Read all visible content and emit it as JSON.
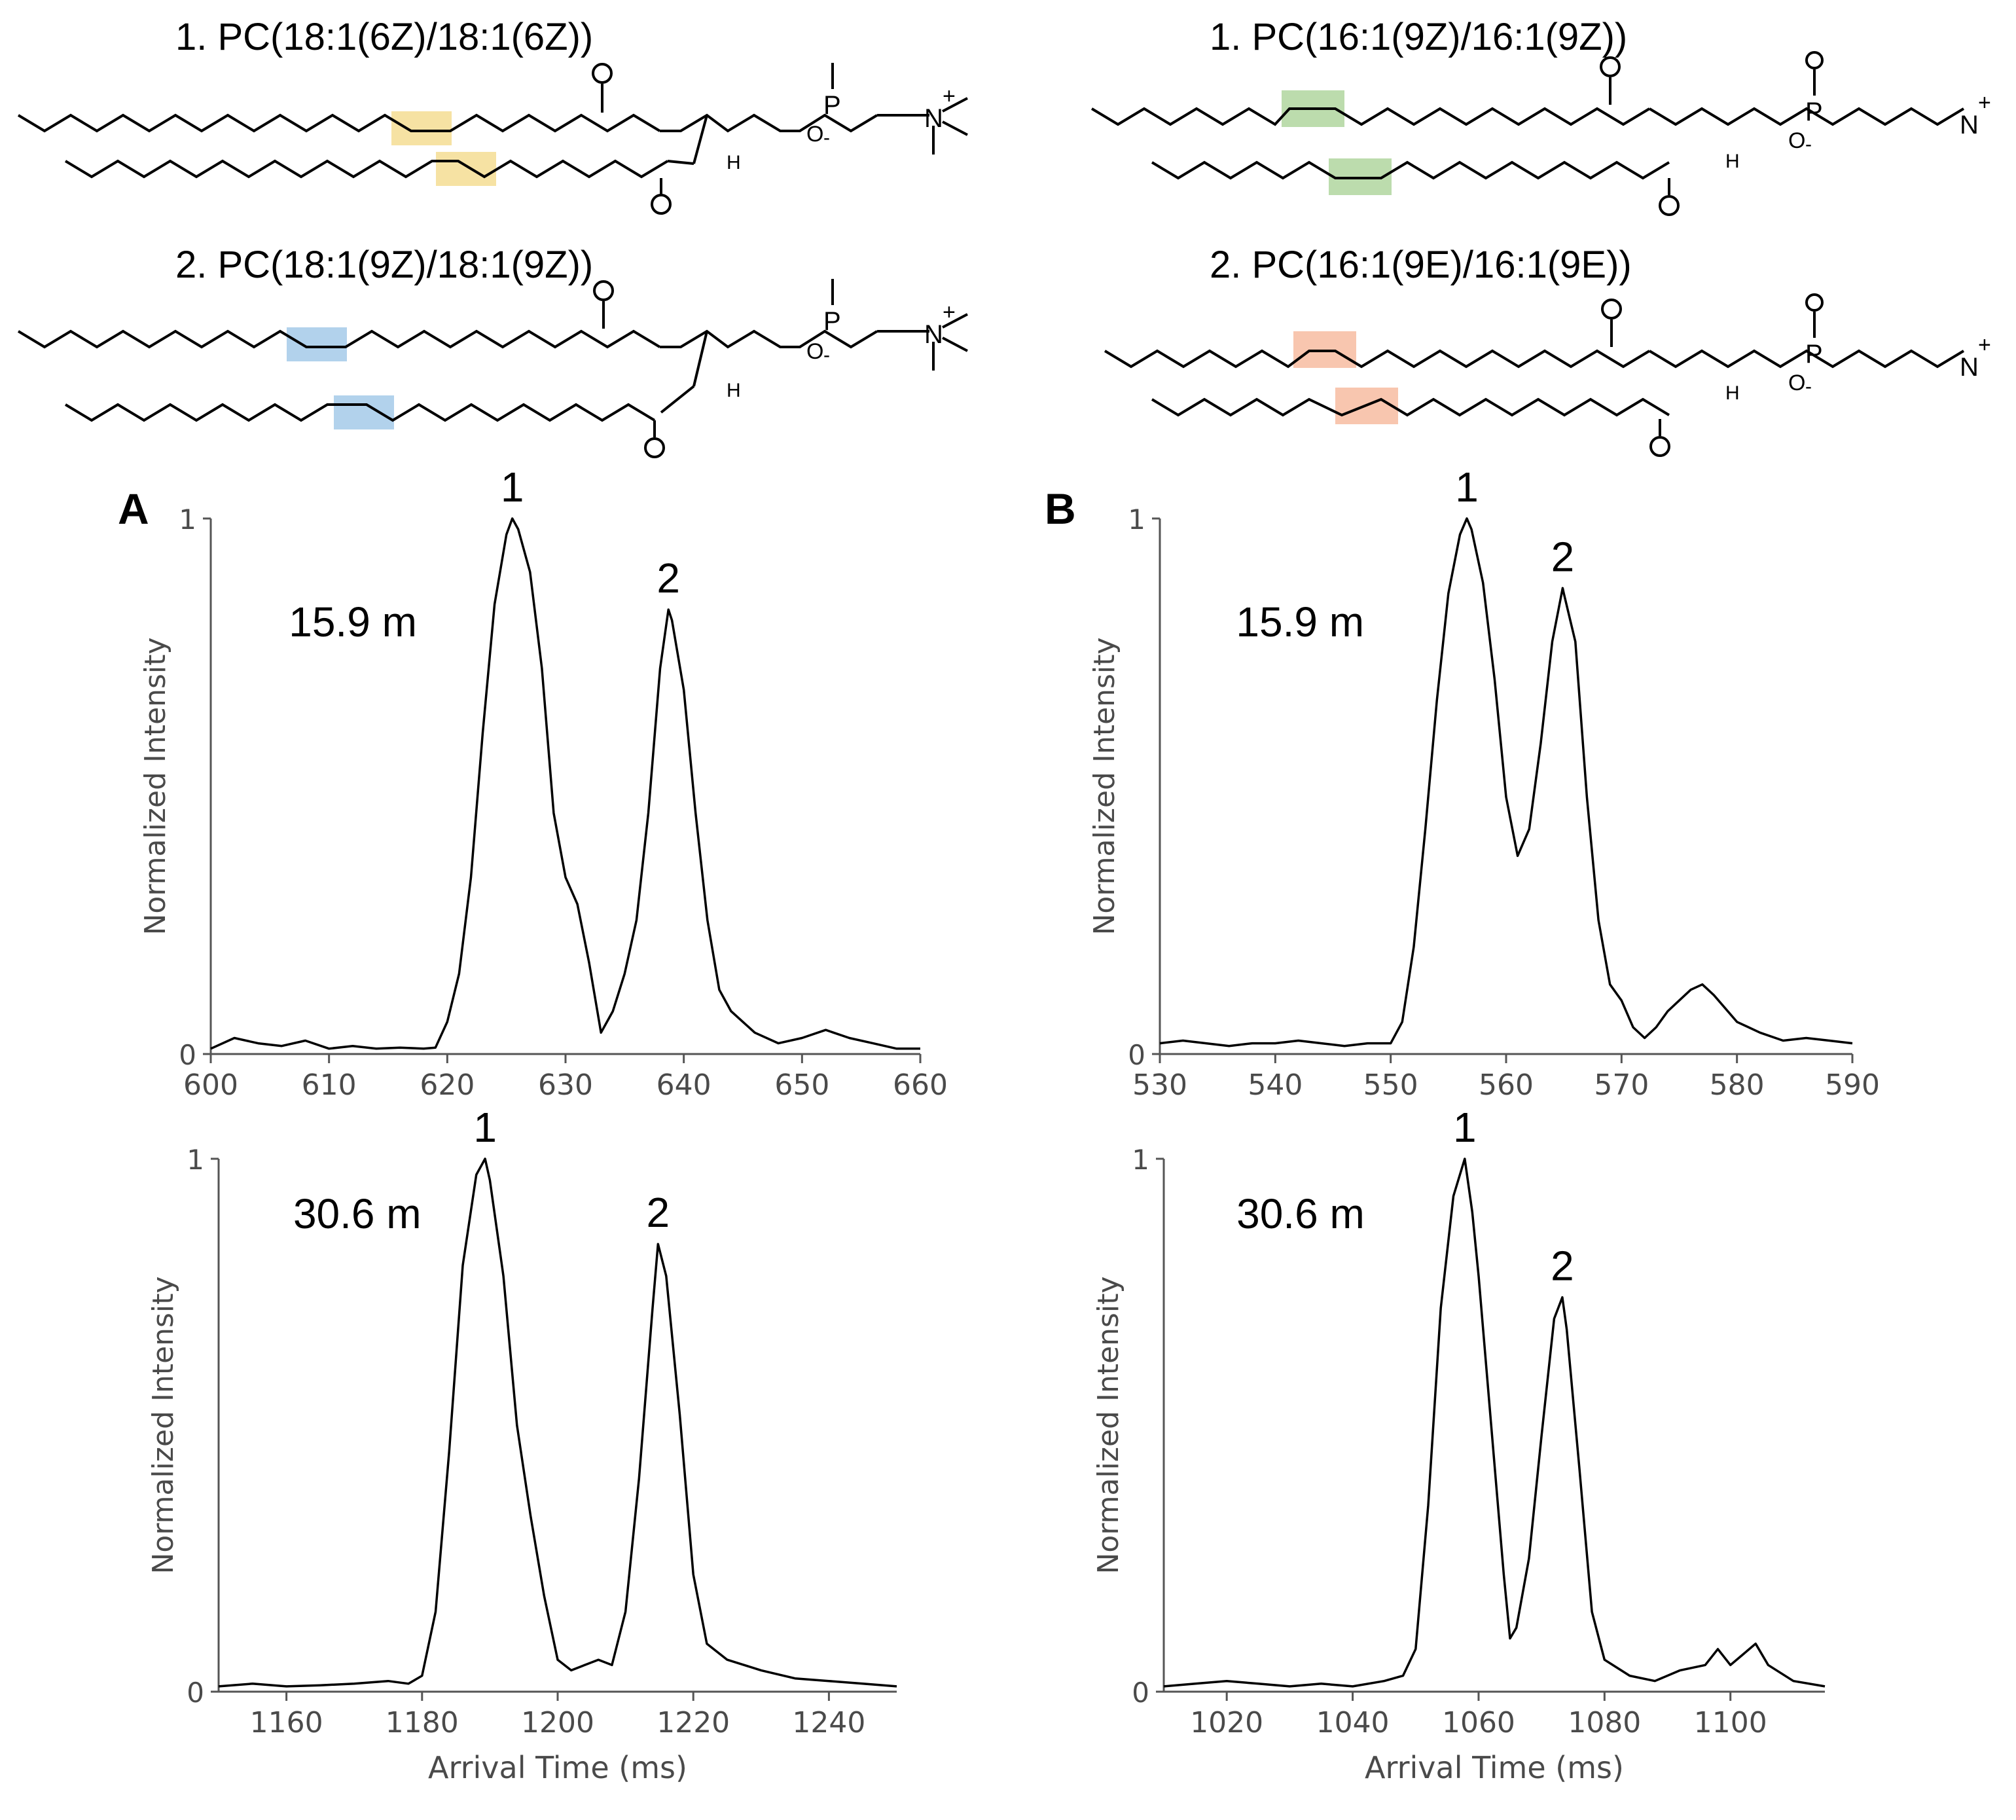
{
  "structures": [
    {
      "panel": "A",
      "compounds": [
        {
          "label": "1. PC(18:1(6Z)/18:1(6Z))",
          "highlight": "#f5df99"
        },
        {
          "label": "2. PC(18:1(9Z)/18:1(9Z))",
          "highlight": "#aacdea"
        }
      ]
    },
    {
      "panel": "B",
      "compounds": [
        {
          "label": "1. PC(16:1(9Z)/16:1(9Z))",
          "highlight": "#b5d8a4"
        },
        {
          "label": "2. PC(16:1(9E)/16:1(9E))",
          "highlight": "#f7c0a6"
        }
      ]
    }
  ],
  "atoms": {
    "O": "O",
    "P": "P",
    "N": "N",
    "H": "H",
    "minus": "-",
    "plus": "+"
  },
  "chart_data": [
    {
      "type": "line",
      "panel_label": "A",
      "annotation": "15.9 m",
      "ylabel": "Normalized Intensity",
      "xlabel": "",
      "xlim": [
        600,
        660
      ],
      "ylim": [
        0,
        1
      ],
      "xticks": [
        600,
        610,
        620,
        630,
        640,
        650,
        660
      ],
      "yticks": [
        0,
        1
      ],
      "peak_labels": [
        {
          "text": "1",
          "x": 625.5,
          "y": 1.0
        },
        {
          "text": "2",
          "x": 638.7,
          "y": 0.83
        }
      ],
      "series": [
        {
          "x": [
            600,
            602,
            604,
            606,
            608,
            610,
            612,
            614,
            616,
            618,
            619,
            620,
            621,
            622,
            623,
            624,
            625,
            625.5,
            626,
            627,
            628,
            629,
            630,
            631,
            632,
            633,
            634,
            635,
            636,
            637,
            638,
            638.7,
            639,
            640,
            641,
            642,
            643,
            644,
            645,
            646,
            648,
            650,
            652,
            654,
            656,
            658,
            660
          ],
          "y": [
            0.01,
            0.03,
            0.02,
            0.015,
            0.025,
            0.01,
            0.015,
            0.01,
            0.012,
            0.01,
            0.012,
            0.06,
            0.15,
            0.33,
            0.6,
            0.84,
            0.97,
            1.0,
            0.98,
            0.9,
            0.72,
            0.45,
            0.33,
            0.28,
            0.17,
            0.04,
            0.08,
            0.15,
            0.25,
            0.45,
            0.72,
            0.83,
            0.81,
            0.68,
            0.45,
            0.25,
            0.12,
            0.08,
            0.06,
            0.04,
            0.02,
            0.03,
            0.045,
            0.03,
            0.02,
            0.01,
            0.01
          ]
        }
      ]
    },
    {
      "type": "line",
      "panel_label": "B",
      "annotation": "15.9 m",
      "ylabel": "Normalized Intensity",
      "xlabel": "",
      "xlim": [
        530,
        590
      ],
      "ylim": [
        0,
        1
      ],
      "xticks": [
        530,
        540,
        550,
        560,
        570,
        580,
        590
      ],
      "yticks": [
        0,
        1
      ],
      "peak_labels": [
        {
          "text": "1",
          "x": 556.6,
          "y": 1.0
        },
        {
          "text": "2",
          "x": 564.9,
          "y": 0.87
        }
      ],
      "series": [
        {
          "x": [
            530,
            532,
            534,
            536,
            538,
            540,
            542,
            544,
            546,
            548,
            550,
            551,
            552,
            553,
            554,
            555,
            556,
            556.6,
            557,
            558,
            559,
            560,
            561,
            562,
            563,
            564,
            564.9,
            565,
            566,
            567,
            568,
            569,
            570,
            571,
            572,
            573,
            574,
            575,
            576,
            577,
            578,
            580,
            582,
            584,
            586,
            588,
            590
          ],
          "y": [
            0.02,
            0.025,
            0.02,
            0.015,
            0.02,
            0.02,
            0.025,
            0.02,
            0.015,
            0.02,
            0.02,
            0.06,
            0.2,
            0.42,
            0.66,
            0.86,
            0.97,
            1.0,
            0.98,
            0.88,
            0.7,
            0.48,
            0.37,
            0.42,
            0.58,
            0.77,
            0.87,
            0.86,
            0.77,
            0.48,
            0.25,
            0.13,
            0.1,
            0.05,
            0.03,
            0.05,
            0.08,
            0.1,
            0.12,
            0.13,
            0.11,
            0.06,
            0.04,
            0.025,
            0.03,
            0.025,
            0.02
          ]
        }
      ]
    },
    {
      "type": "line",
      "panel_label": "",
      "annotation": "30.6 m",
      "ylabel": "Normalized Intensity",
      "xlabel": "Arrival Time (ms)",
      "xlim": [
        1150,
        1250
      ],
      "ylim": [
        0,
        1
      ],
      "xticks": [
        1160,
        1180,
        1200,
        1220,
        1240
      ],
      "yticks": [
        0,
        1
      ],
      "peak_labels": [
        {
          "text": "1",
          "x": 1189.3,
          "y": 1.0
        },
        {
          "text": "2",
          "x": 1214.8,
          "y": 0.84
        }
      ],
      "series": [
        {
          "x": [
            1150,
            1155,
            1160,
            1165,
            1170,
            1175,
            1178,
            1180,
            1182,
            1184,
            1186,
            1188,
            1189.3,
            1190,
            1192,
            1194,
            1196,
            1198,
            1200,
            1202,
            1204,
            1206,
            1208,
            1210,
            1212,
            1214,
            1214.8,
            1216,
            1218,
            1220,
            1222,
            1225,
            1230,
            1235,
            1240,
            1245,
            1250
          ],
          "y": [
            0.01,
            0.015,
            0.01,
            0.012,
            0.015,
            0.02,
            0.015,
            0.03,
            0.15,
            0.45,
            0.8,
            0.97,
            1.0,
            0.96,
            0.78,
            0.5,
            0.33,
            0.18,
            0.06,
            0.04,
            0.05,
            0.06,
            0.05,
            0.15,
            0.4,
            0.72,
            0.84,
            0.78,
            0.52,
            0.22,
            0.09,
            0.06,
            0.04,
            0.025,
            0.02,
            0.015,
            0.01
          ]
        }
      ]
    },
    {
      "type": "line",
      "panel_label": "",
      "annotation": "30.6 m",
      "ylabel": "Normalized Intensity",
      "xlabel": "Arrival Time (ms)",
      "xlim": [
        1010,
        1115
      ],
      "ylim": [
        0,
        1
      ],
      "xticks": [
        1020,
        1040,
        1060,
        1080,
        1100
      ],
      "yticks": [
        0,
        1
      ],
      "peak_labels": [
        {
          "text": "1",
          "x": 1057.8,
          "y": 1.0
        },
        {
          "text": "2",
          "x": 1073.3,
          "y": 0.74
        }
      ],
      "series": [
        {
          "x": [
            1010,
            1015,
            1020,
            1025,
            1030,
            1035,
            1040,
            1045,
            1048,
            1050,
            1052,
            1054,
            1056,
            1057.8,
            1059,
            1060,
            1062,
            1064,
            1065,
            1066,
            1068,
            1070,
            1072,
            1073.3,
            1074,
            1076,
            1078,
            1080,
            1084,
            1088,
            1092,
            1096,
            1098,
            1100,
            1102,
            1104,
            1106,
            1110,
            1115
          ],
          "y": [
            0.01,
            0.015,
            0.02,
            0.015,
            0.01,
            0.015,
            0.01,
            0.02,
            0.03,
            0.08,
            0.35,
            0.72,
            0.93,
            1.0,
            0.9,
            0.78,
            0.5,
            0.22,
            0.1,
            0.12,
            0.25,
            0.48,
            0.7,
            0.74,
            0.68,
            0.42,
            0.15,
            0.06,
            0.03,
            0.02,
            0.04,
            0.05,
            0.08,
            0.05,
            0.07,
            0.09,
            0.05,
            0.02,
            0.01
          ]
        }
      ]
    }
  ]
}
